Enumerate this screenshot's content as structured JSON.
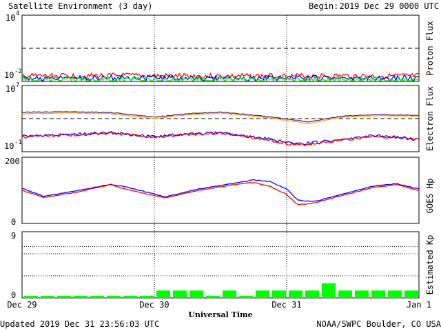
{
  "header": {
    "title": "Satellite Environment (3 day)",
    "begin_label": "Begin:",
    "begin_value": "2019 Dec 29 0000 UTC"
  },
  "footer": {
    "updated": "Updated 2019 Dec 31 23:56:03 UTC",
    "credit": "NOAA/SWPC Boulder, CO USA"
  },
  "colors": {
    "red": "#ff0000",
    "blue": "#0000ff",
    "green": "#00ff00",
    "orange": "#ffa500",
    "purple": "#5a2d8c",
    "frame": "#000000"
  },
  "chart_data": [
    {
      "type": "line",
      "ylabel": "Proton Flux",
      "yscale": "log",
      "ylim": [
        0.01,
        10000
      ],
      "ytick_labels": [
        {
          "base": "10",
          "exp": "4",
          "value": 10000
        },
        {
          "base": "10",
          "exp": "-2",
          "value": 0.01
        }
      ],
      "threshold": 10,
      "series": [
        {
          "color": "red",
          "values": [
            0.03,
            0.032,
            0.029,
            0.031,
            0.03
          ]
        },
        {
          "color": "blue",
          "values": [
            0.02,
            0.021,
            0.019,
            0.02,
            0.02
          ]
        },
        {
          "color": "green",
          "values": [
            0.014,
            0.015,
            0.013,
            0.014,
            0.014
          ]
        }
      ]
    },
    {
      "type": "line",
      "ylabel": "Electron Flux",
      "yscale": "log",
      "ylim": [
        0.1,
        10000000
      ],
      "ytick_labels": [
        {
          "base": "10",
          "exp": "7",
          "value": 10000000
        },
        {
          "base": "10",
          "exp": "-1",
          "value": 0.1
        }
      ],
      "threshold": 1000,
      "series": [
        {
          "color": "purple",
          "x": [
            0,
            8,
            16,
            24,
            30,
            36,
            44,
            52,
            58,
            64,
            72
          ],
          "values": [
            6000,
            7000,
            5500,
            1500,
            4000,
            6000,
            2000,
            400,
            2000,
            3000,
            2500
          ]
        },
        {
          "color": "orange",
          "x": [
            0,
            8,
            16,
            24,
            30,
            36,
            44,
            52,
            58,
            64,
            72
          ],
          "values": [
            4000,
            5000,
            4000,
            1000,
            3000,
            4500,
            1500,
            250,
            1500,
            2200,
            2000
          ]
        },
        {
          "color": "blue",
          "x": [
            0,
            8,
            16,
            24,
            30,
            36,
            44,
            50,
            54,
            58,
            64,
            72
          ],
          "values": [
            8,
            12,
            20,
            6,
            15,
            20,
            4,
            0.8,
            1.5,
            3,
            10,
            3
          ]
        },
        {
          "color": "red",
          "x": [
            0,
            8,
            16,
            24,
            30,
            36,
            44,
            50,
            54,
            58,
            64,
            72
          ],
          "values": [
            6,
            10,
            18,
            5,
            12,
            18,
            3,
            0.6,
            1.2,
            2.5,
            8,
            2.5
          ]
        }
      ]
    },
    {
      "type": "line",
      "ylabel": "GOES Hp",
      "ylim": [
        0,
        200
      ],
      "ytick_labels": [
        "200",
        "0"
      ],
      "series": [
        {
          "color": "blue",
          "x": [
            0,
            4,
            10,
            16,
            19,
            26,
            32,
            38,
            42,
            45,
            48,
            50,
            53,
            58,
            64,
            68,
            72
          ],
          "values": [
            106,
            82,
            99,
            118,
            110,
            80,
            104,
            120,
            132,
            126,
            104,
            70,
            66,
            88,
            114,
            120,
            104
          ]
        },
        {
          "color": "red",
          "x": [
            0,
            4,
            10,
            16,
            19,
            26,
            32,
            38,
            42,
            45,
            48,
            50,
            53,
            58,
            64,
            68,
            72
          ],
          "values": [
            100,
            78,
            95,
            117,
            102,
            77,
            100,
            116,
            124,
            112,
            88,
            56,
            62,
            84,
            110,
            117,
            98
          ]
        }
      ]
    },
    {
      "type": "bar",
      "ylabel": "Estimated Kp",
      "ylim": [
        0,
        9
      ],
      "ytick_labels": [
        "9",
        "0"
      ],
      "values": [
        0.3,
        0.3,
        0.3,
        0.3,
        0.3,
        0.3,
        0.3,
        0.3,
        1,
        1,
        1,
        0.3,
        1,
        0.3,
        1,
        1,
        1,
        1,
        2,
        1,
        1,
        1,
        1,
        1
      ],
      "color": "green"
    }
  ],
  "xaxis": {
    "label": "Universal Time",
    "tick_labels": [
      "Dec 29",
      "Dec 30",
      "Dec 31",
      "Jan 1"
    ],
    "range_hours": [
      0,
      72
    ]
  }
}
